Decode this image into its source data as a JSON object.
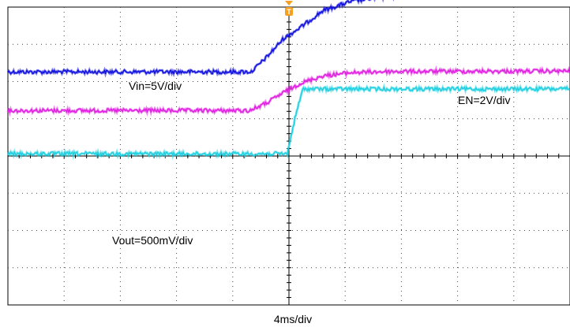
{
  "chart_data": {
    "type": "line",
    "title": "",
    "xlabel": "4ms/div",
    "ylabel": "",
    "grid": true,
    "divisions": {
      "x": 10,
      "y": 8
    },
    "trigger_marker": {
      "label": "T",
      "color": "#f5a020",
      "x_div": 5
    },
    "annotations": [
      {
        "text": "Vin=5V/div",
        "series": "vin"
      },
      {
        "text": "EN=2V/div",
        "series": "en"
      },
      {
        "text": "Vout=500mV/div",
        "series": "vout"
      }
    ],
    "series": [
      {
        "id": "vin",
        "color": "#1010e0",
        "points": [
          [
            0,
            6.26
          ],
          [
            4.33,
            6.26
          ],
          [
            4.6,
            6.65
          ],
          [
            4.9,
            7.15
          ],
          [
            5.2,
            7.45
          ],
          [
            5.6,
            7.9
          ],
          [
            6.1,
            8.15
          ],
          [
            6.6,
            8.26
          ],
          [
            7.2,
            8.33
          ],
          [
            8,
            8.35
          ],
          [
            10,
            8.35
          ]
        ]
      },
      {
        "id": "en",
        "color": "#e020e0",
        "points": [
          [
            0,
            5.22
          ],
          [
            4.3,
            5.22
          ],
          [
            4.6,
            5.42
          ],
          [
            4.9,
            5.7
          ],
          [
            5.2,
            5.95
          ],
          [
            5.6,
            6.15
          ],
          [
            6.1,
            6.24
          ],
          [
            6.8,
            6.27
          ],
          [
            10,
            6.28
          ]
        ]
      },
      {
        "id": "vout",
        "color": "#20d0e0",
        "points": [
          [
            0,
            4.06
          ],
          [
            4.97,
            4.06
          ],
          [
            5.12,
            5.1
          ],
          [
            5.25,
            5.8
          ],
          [
            8,
            5.8
          ],
          [
            10,
            5.8
          ]
        ]
      }
    ]
  }
}
